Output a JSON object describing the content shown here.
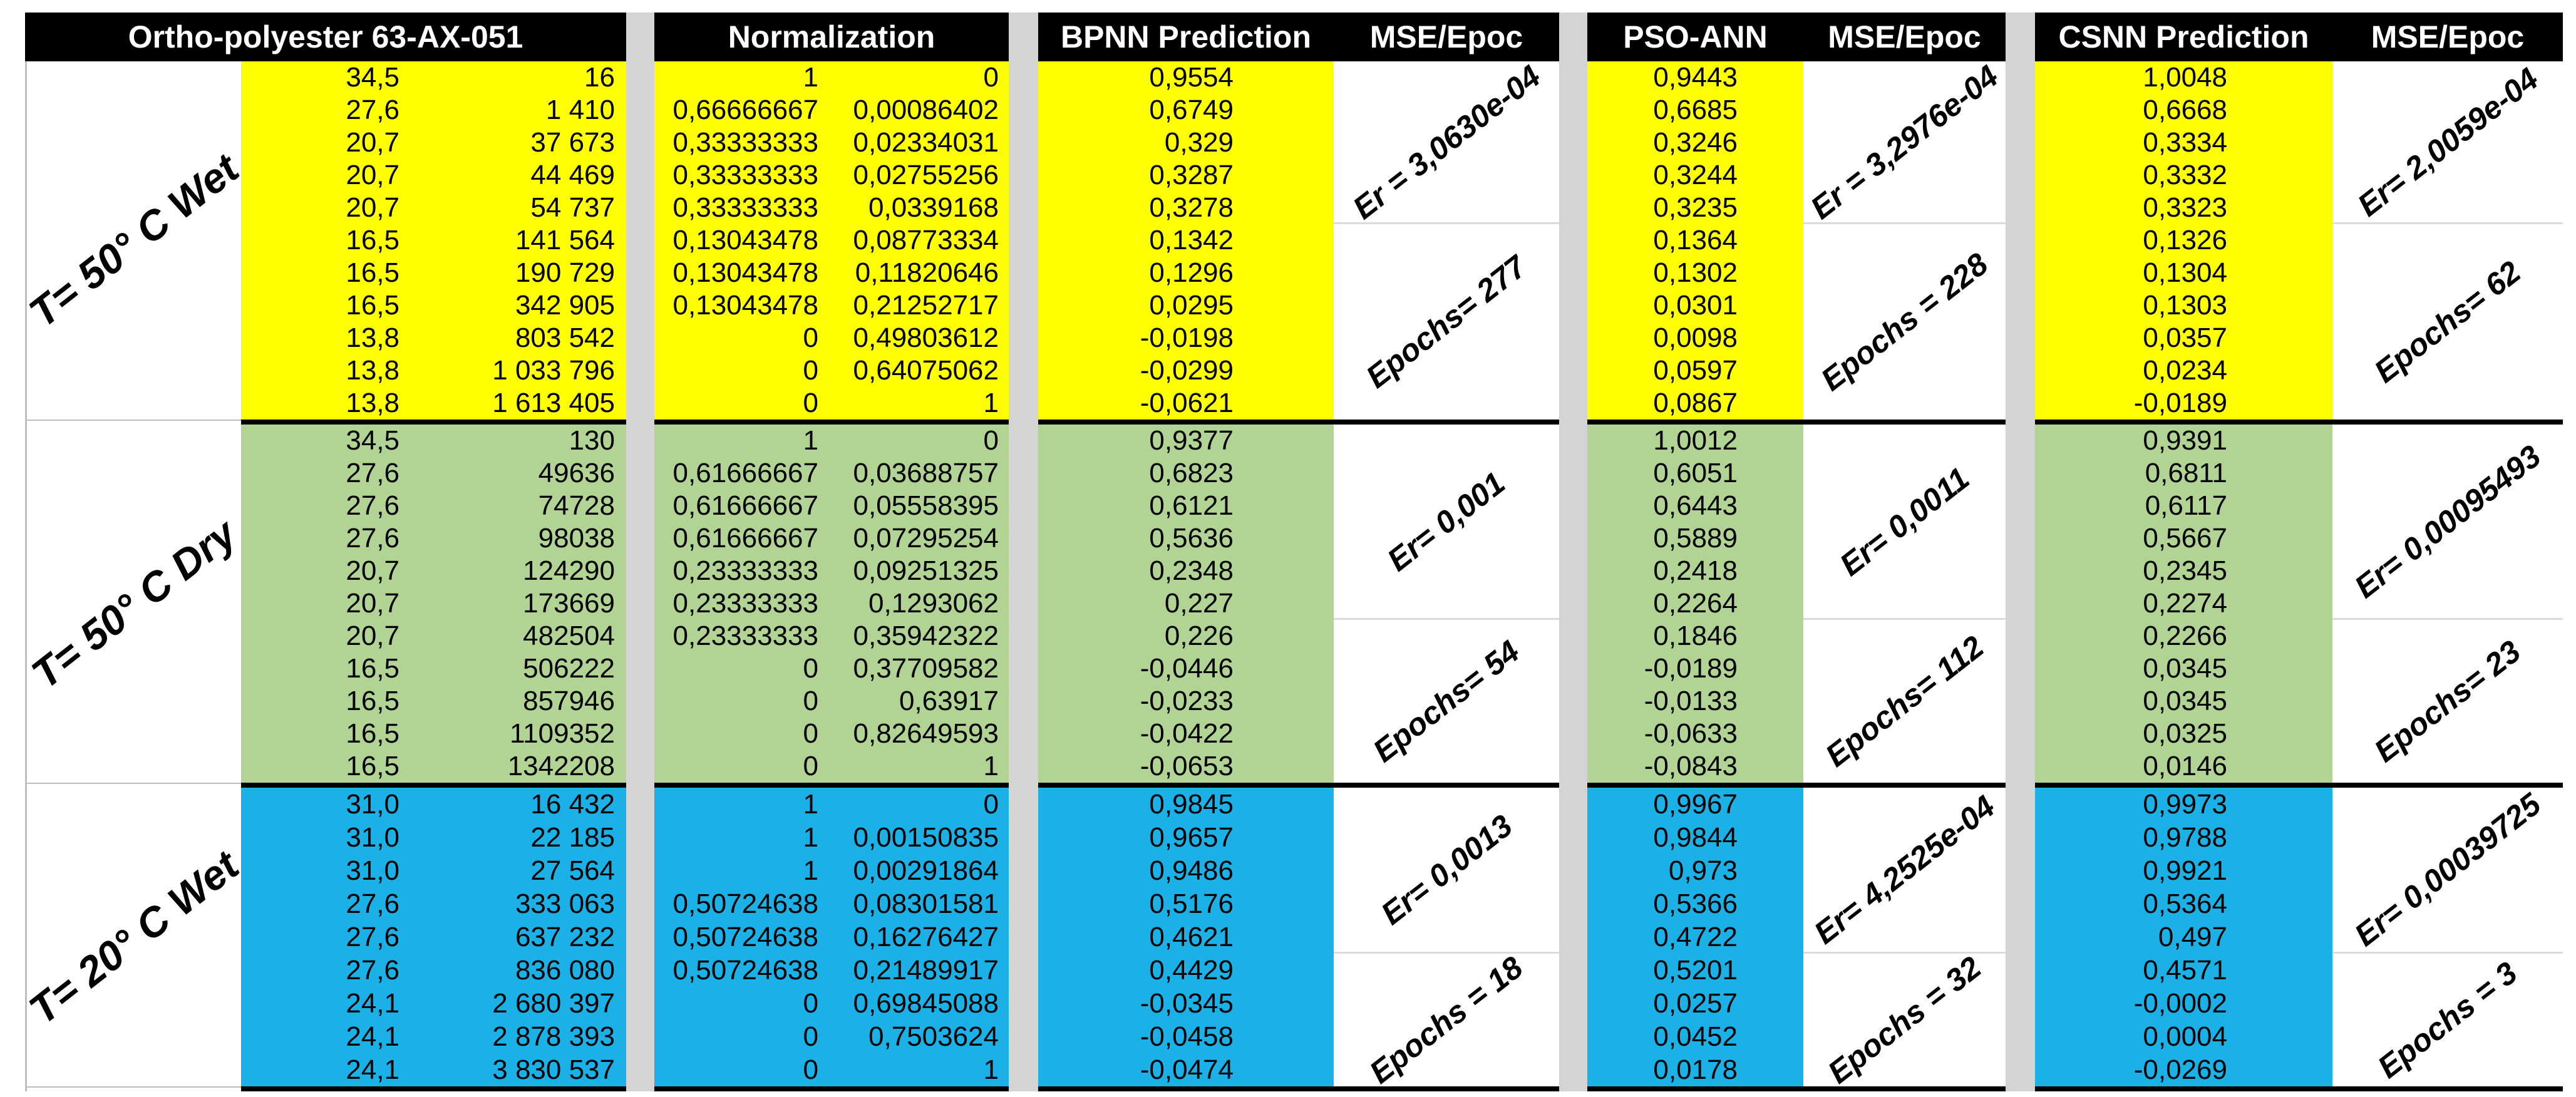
{
  "table": {
    "header": {
      "specimen": "Ortho-polyester 63-AX-051",
      "normalization": "Normalization",
      "bpnn": "BPNN Prediction",
      "bpnn_mse": "MSE/Epoc",
      "pso": "PSO-ANN",
      "pso_mse": "MSE/Epoc",
      "csnn": "CSNN Prediction",
      "csnn_mse": "MSE/Epoc"
    },
    "colors": {
      "header_bg": "#000000",
      "header_text": "#ffffff",
      "gutter": "#d4d4d4",
      "group_t50_wet": "#ffff00",
      "group_t50_dry": "#b1d495",
      "group_t20_wet": "#1bb1e7"
    },
    "groups": [
      {
        "label": "T= 50° C Wet",
        "color": "#ffff00",
        "raw": [
          [
            "34,5",
            "16"
          ],
          [
            "27,6",
            "1 410"
          ],
          [
            "20,7",
            "37 673"
          ],
          [
            "20,7",
            "44 469"
          ],
          [
            "20,7",
            "54 737"
          ],
          [
            "16,5",
            "141 564"
          ],
          [
            "16,5",
            "190 729"
          ],
          [
            "16,5",
            "342 905"
          ],
          [
            "13,8",
            "803 542"
          ],
          [
            "13,8",
            "1 033 796"
          ],
          [
            "13,8",
            "1 613 405"
          ]
        ],
        "norm": [
          [
            "1",
            "0"
          ],
          [
            "0,66666667",
            "0,00086402"
          ],
          [
            "0,33333333",
            "0,02334031"
          ],
          [
            "0,33333333",
            "0,02755256"
          ],
          [
            "0,33333333",
            "0,0339168"
          ],
          [
            "0,13043478",
            "0,08773334"
          ],
          [
            "0,13043478",
            "0,11820646"
          ],
          [
            "0,13043478",
            "0,21252717"
          ],
          [
            "0",
            "0,49803612"
          ],
          [
            "0",
            "0,64075062"
          ],
          [
            "0",
            "1"
          ]
        ],
        "models": {
          "bpnn": {
            "values": [
              "0,9554",
              "0,6749",
              "0,329",
              "0,3287",
              "0,3278",
              "0,1342",
              "0,1296",
              "0,0295",
              "-0,0198",
              "-0,0299",
              "-0,0621"
            ],
            "er": "Er = 3,0630e-04",
            "epochs": "Epochs= 277",
            "er_rows": 5
          },
          "pso": {
            "values": [
              "0,9443",
              "0,6685",
              "0,3246",
              "0,3244",
              "0,3235",
              "0,1364",
              "0,1302",
              "0,0301",
              "0,0098",
              "0,0597",
              "0,0867"
            ],
            "er": "Er = 3,2976e-04",
            "epochs": "Epochs = 228",
            "er_rows": 5
          },
          "csnn": {
            "values": [
              "1,0048",
              "0,6668",
              "0,3334",
              "0,3332",
              "0,3323",
              "0,1326",
              "0,1304",
              "0,1303",
              "0,0357",
              "0,0234",
              "-0,0189"
            ],
            "er": "Er= 2,0059e-04",
            "epochs": "Epochs= 62",
            "er_rows": 5
          }
        }
      },
      {
        "label": "T= 50° C Dry",
        "color": "#b1d495",
        "raw": [
          [
            "34,5",
            "130"
          ],
          [
            "27,6",
            "49636"
          ],
          [
            "27,6",
            "74728"
          ],
          [
            "27,6",
            "98038"
          ],
          [
            "20,7",
            "124290"
          ],
          [
            "20,7",
            "173669"
          ],
          [
            "20,7",
            "482504"
          ],
          [
            "16,5",
            "506222"
          ],
          [
            "16,5",
            "857946"
          ],
          [
            "16,5",
            "1109352"
          ],
          [
            "16,5",
            "1342208"
          ]
        ],
        "norm": [
          [
            "1",
            "0"
          ],
          [
            "0,61666667",
            "0,03688757"
          ],
          [
            "0,61666667",
            "0,05558395"
          ],
          [
            "0,61666667",
            "0,07295254"
          ],
          [
            "0,23333333",
            "0,09251325"
          ],
          [
            "0,23333333",
            "0,1293062"
          ],
          [
            "0,23333333",
            "0,35942322"
          ],
          [
            "0",
            "0,37709582"
          ],
          [
            "0",
            "0,63917"
          ],
          [
            "0",
            "0,82649593"
          ],
          [
            "0",
            "1"
          ]
        ],
        "models": {
          "bpnn": {
            "values": [
              "0,9377",
              "0,6823",
              "0,6121",
              "0,5636",
              "0,2348",
              "0,227",
              "0,226",
              "-0,0446",
              "-0,0233",
              "-0,0422",
              "-0,0653"
            ],
            "er": "Er= 0,001",
            "epochs": "Epochs= 54",
            "er_rows": 6
          },
          "pso": {
            "values": [
              "1,0012",
              "0,6051",
              "0,6443",
              "0,5889",
              "0,2418",
              "0,2264",
              "0,1846",
              "-0,0189",
              "-0,0133",
              "-0,0633",
              "-0,0843"
            ],
            "er": "Er= 0,0011",
            "epochs": "Epochs= 112",
            "er_rows": 6
          },
          "csnn": {
            "values": [
              "0,9391",
              "0,6811",
              "0,6117",
              "0,5667",
              "0,2345",
              "0,2274",
              "0,2266",
              "0,0345",
              "0,0345",
              "0,0325",
              "0,0146"
            ],
            "er": "Er= 0,00095493",
            "epochs": "Epochs= 23",
            "er_rows": 6
          }
        }
      },
      {
        "label": "T= 20° C Wet",
        "color": "#1bb1e7",
        "raw": [
          [
            "31,0",
            "16 432"
          ],
          [
            "31,0",
            "22 185"
          ],
          [
            "31,0",
            "27 564"
          ],
          [
            "27,6",
            "333 063"
          ],
          [
            "27,6",
            "637 232"
          ],
          [
            "27,6",
            "836 080"
          ],
          [
            "24,1",
            "2 680 397"
          ],
          [
            "24,1",
            "2 878 393"
          ],
          [
            "24,1",
            "3 830 537"
          ]
        ],
        "norm": [
          [
            "1",
            "0"
          ],
          [
            "1",
            "0,00150835"
          ],
          [
            "1",
            "0,00291864"
          ],
          [
            "0,50724638",
            "0,08301581"
          ],
          [
            "0,50724638",
            "0,16276427"
          ],
          [
            "0,50724638",
            "0,21489917"
          ],
          [
            "0",
            "0,69845088"
          ],
          [
            "0",
            "0,7503624"
          ],
          [
            "0",
            "1"
          ]
        ],
        "models": {
          "bpnn": {
            "values": [
              "0,9845",
              "0,9657",
              "0,9486",
              "0,5176",
              "0,4621",
              "0,4429",
              "-0,0345",
              "-0,0458",
              "-0,0474"
            ],
            "er": "Er= 0,0013",
            "epochs": "Epochs = 18",
            "er_rows": 5
          },
          "pso": {
            "values": [
              "0,9967",
              "0,9844",
              "0,973",
              "0,5366",
              "0,4722",
              "0,5201",
              "0,0257",
              "0,0452",
              "0,0178"
            ],
            "er": "Er= 4,2525e-04",
            "epochs": "Epochs = 32",
            "er_rows": 5
          },
          "csnn": {
            "values": [
              "0,9973",
              "0,9788",
              "0,9921",
              "0,5364",
              "0,497",
              "0,4571",
              "-0,0002",
              "0,0004",
              "-0,0269"
            ],
            "er": "Er= 0,00039725",
            "epochs": "Epochs = 3",
            "er_rows": 5
          }
        }
      }
    ]
  }
}
